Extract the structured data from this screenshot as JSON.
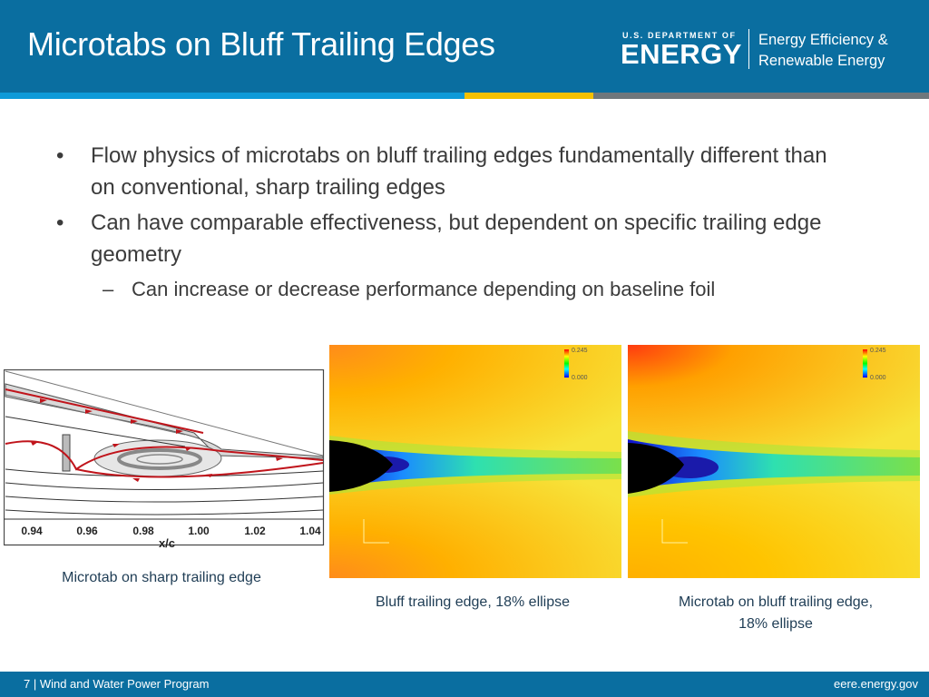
{
  "header": {
    "title": "Microtabs on Bluff Trailing Edges",
    "logo_small": "U.S. DEPARTMENT OF",
    "logo_big": "ENERGY",
    "eere_line1": "Energy Efficiency &",
    "eere_line2": "Renewable Energy"
  },
  "body": {
    "bullets": [
      {
        "text": "Flow physics of microtabs on bluff trailing edges fundamentally different than on conventional, sharp trailing edges"
      },
      {
        "text": "Can have comparable effectiveness, but dependent on specific trailing edge geometry"
      }
    ],
    "subbullet": "Can increase or decrease performance depending on baseline foil",
    "bullet_symbol": "•",
    "dash_symbol": "–"
  },
  "figures": {
    "left": {
      "caption": "Microtab on sharp trailing edge",
      "x_ticks": [
        "0.94",
        "0.96",
        "0.98",
        "1.00",
        "1.02",
        "1.04"
      ],
      "x_label": "x/c"
    },
    "middle": {
      "caption": "Bluff trailing edge, 18% ellipse",
      "legend_max": "0.245",
      "legend_min": "0.000"
    },
    "right": {
      "caption_line1": "Microtab on bluff trailing edge,",
      "caption_line2": "18% ellipse",
      "legend_max": "0.245",
      "legend_min": "0.000"
    }
  },
  "footer": {
    "left": "7 | Wind and Water Power Program",
    "right": "eere.energy.gov"
  },
  "colors": {
    "header_bg": "#0a6ea0",
    "stripe_blue": "#0e9ad8",
    "stripe_yellow": "#f5c000",
    "stripe_gray": "#6f777c",
    "text": "#3b3b3b",
    "caption": "#1f3d55",
    "streamline_red": "#c0141b"
  }
}
